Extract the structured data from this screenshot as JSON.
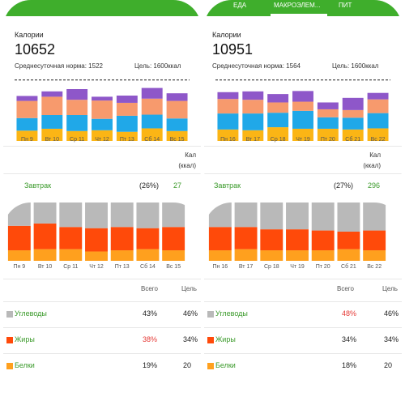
{
  "colors": {
    "brand_green": "#3fae2c",
    "purple": "#8e57c9",
    "salmon": "#f79a6d",
    "blue": "#20a8e8",
    "yellow": "#fbb515",
    "gray": "#b9b9b9",
    "red_orange": "#ff4a0a",
    "orange": "#ffa01e",
    "over_limit_red": "#e53935"
  },
  "panel1": {
    "title": "Калории",
    "total": "10652",
    "norm": "Среднесуточная норма: 1522",
    "goal": "Цель: 1600ккал",
    "days": [
      "Пн 9",
      "Вт 10",
      "Ср 11",
      "Чт 12",
      "Пт 13",
      "Сб 14",
      "Вс 15"
    ],
    "unit_label_1": "Кал",
    "unit_label_2": "(ккал)",
    "meal_name": "Завтрак",
    "meal_pct": "(26%)",
    "meal_kcal": "27"
  },
  "panel2": {
    "tabs": [
      "ЕДА",
      "МАКРОЭЛЕМ...",
      "ПИТ"
    ],
    "title": "Калории",
    "total": "10951",
    "norm": "Среднесуточная норма: 1564",
    "goal": "Цель: 1600ккал",
    "days": [
      "Пн 16",
      "Вт 17",
      "Ср 18",
      "Чт 19",
      "Пт 20",
      "Сб 21",
      "Вс 22"
    ],
    "unit_label_1": "Кал",
    "unit_label_2": "(ккал)",
    "meal_name": "Завтрак",
    "meal_pct": "(27%)",
    "meal_kcal": "296"
  },
  "panel3": {
    "days": [
      "Пн 9",
      "Вт 10",
      "Ср 11",
      "Чт 12",
      "Пт 13",
      "Сб 14",
      "Вс 15"
    ],
    "header_total": "Всего",
    "header_goal": "Цель",
    "rows": [
      {
        "name": "Углеводы",
        "total": "43%",
        "goal": "46%",
        "over": false,
        "swatch": "#b9b9b9"
      },
      {
        "name": "Жиры",
        "total": "38%",
        "goal": "34%",
        "over": true,
        "swatch": "#ff4a0a"
      },
      {
        "name": "Белки",
        "total": "19%",
        "goal": "20",
        "over": false,
        "swatch": "#ffa01e"
      }
    ]
  },
  "panel4": {
    "days": [
      "Пн 16",
      "Вт 17",
      "Ср 18",
      "Чт 19",
      "Пт 20",
      "Сб 21",
      "Вс 22"
    ],
    "header_total": "Всего",
    "header_goal": "Цель",
    "rows": [
      {
        "name": "Углеводы",
        "total": "48%",
        "goal": "46%",
        "over": true,
        "swatch": "#b9b9b9"
      },
      {
        "name": "Жиры",
        "total": "34%",
        "goal": "34%",
        "over": false,
        "swatch": "#ff4a0a"
      },
      {
        "name": "Белки",
        "total": "18%",
        "goal": "20",
        "over": false,
        "swatch": "#ffa01e"
      }
    ]
  },
  "chart_data": [
    {
      "type": "bar",
      "categories": [
        "Пн 9",
        "Вт 10",
        "Ср 11",
        "Чт 12",
        "Пт 13",
        "Сб 14",
        "Вс 15"
      ],
      "stacked": true,
      "series": [
        {
          "values": [
            270,
            320,
            260,
            280,
            240,
            330,
            260
          ]
        },
        {
          "values": [
            330,
            360,
            420,
            300,
            420,
            360,
            330
          ]
        },
        {
          "values": [
            450,
            480,
            400,
            480,
            340,
            420,
            460
          ]
        },
        {
          "values": [
            130,
            140,
            280,
            100,
            190,
            280,
            200
          ]
        }
      ],
      "goal_line": 1600,
      "ylim": [
        0,
        1700
      ]
    },
    {
      "type": "bar",
      "categories": [
        "Пн 16",
        "Вт 17",
        "Ср 18",
        "Чт 19",
        "Пт 20",
        "Сб 21",
        "Вс 22"
      ],
      "stacked": true,
      "series": [
        {
          "values": [
            300,
            280,
            360,
            320,
            320,
            300,
            330
          ]
        },
        {
          "values": [
            420,
            440,
            380,
            470,
            300,
            310,
            400
          ]
        },
        {
          "values": [
            380,
            360,
            270,
            240,
            210,
            200,
            360
          ]
        },
        {
          "values": [
            180,
            220,
            220,
            280,
            180,
            320,
            170
          ]
        }
      ],
      "goal_line": 1600,
      "ylim": [
        0,
        1700
      ]
    },
    {
      "type": "bar",
      "categories": [
        "Пн 9",
        "Вт 10",
        "Ср 11",
        "Чт 12",
        "Пт 13",
        "Сб 14",
        "Вс 15"
      ],
      "stacked": true,
      "series": [
        {
          "values": [
            18,
            20,
            20,
            16,
            18,
            20,
            18
          ]
        },
        {
          "values": [
            42,
            44,
            38,
            40,
            40,
            36,
            40
          ]
        },
        {
          "values": [
            40,
            36,
            42,
            44,
            42,
            44,
            42
          ]
        }
      ],
      "ylim": [
        0,
        100
      ]
    },
    {
      "type": "bar",
      "categories": [
        "Пн 16",
        "Вт 17",
        "Ср 18",
        "Чт 19",
        "Пт 20",
        "Сб 21",
        "Вс 22"
      ],
      "stacked": true,
      "series": [
        {
          "values": [
            18,
            20,
            18,
            18,
            18,
            20,
            18
          ]
        },
        {
          "values": [
            40,
            38,
            36,
            36,
            34,
            30,
            34
          ]
        },
        {
          "values": [
            42,
            42,
            46,
            46,
            48,
            50,
            48
          ]
        }
      ],
      "ylim": [
        0,
        100
      ]
    }
  ]
}
